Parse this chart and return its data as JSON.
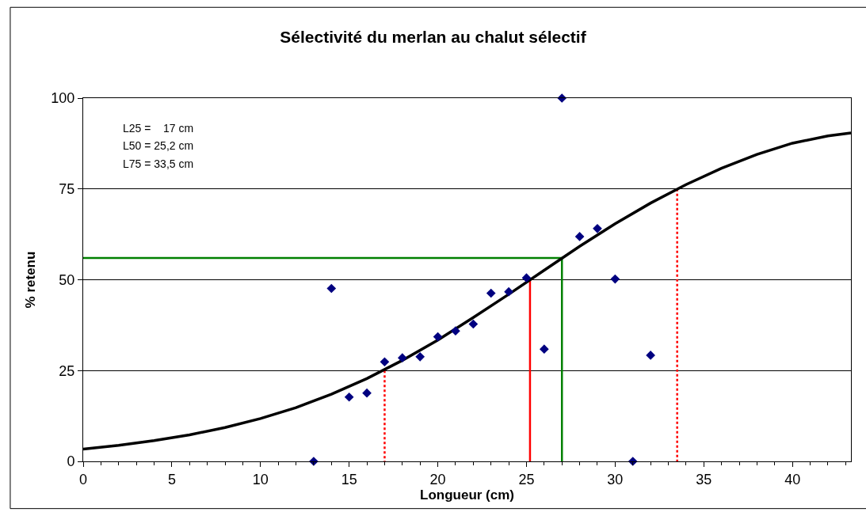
{
  "chart_data": {
    "type": "scatter",
    "title": "Sélectivité du merlan au chalut sélectif",
    "xlabel": "Longueur (cm)",
    "ylabel": "% retenu",
    "xlim": [
      0,
      43.3
    ],
    "xticks": [
      0,
      5,
      10,
      15,
      20,
      25,
      30,
      35,
      40
    ],
    "ylim": [
      0,
      100
    ],
    "yticks": [
      0,
      25,
      50,
      75,
      100
    ],
    "grid": "y",
    "annotations": [
      "L25 =    17 cm",
      "L50 = 25,2 cm",
      "L75 = 33,5 cm"
    ],
    "series": [
      {
        "type": "line",
        "color": "#008000",
        "line_style": "solid",
        "marker": "none",
        "x": [
          0,
          27,
          27
        ],
        "values": [
          56,
          56,
          0
        ]
      },
      {
        "type": "line",
        "color": "#ff0000",
        "line_style": "solid",
        "marker": "none",
        "x": [
          25.2,
          25.2
        ],
        "values": [
          0,
          50
        ]
      },
      {
        "type": "line",
        "color": "#ff0000",
        "line_style": "dotted",
        "marker": "none",
        "x": [
          17,
          17
        ],
        "values": [
          25,
          0
        ]
      },
      {
        "type": "line",
        "color": "#ff0000",
        "line_style": "dotted",
        "marker": "none",
        "x": [
          33.5,
          33.5
        ],
        "values": [
          75,
          0
        ]
      },
      {
        "type": "line",
        "color": "#000000",
        "line_style": "solid",
        "marker": "none",
        "x": [
          0,
          2,
          4,
          6,
          8,
          10,
          12,
          14,
          16,
          18,
          20,
          22,
          24,
          26,
          28,
          30,
          32,
          34,
          36,
          38,
          40,
          42,
          43.3
        ],
        "values": [
          3.4,
          4.4,
          5.7,
          7.3,
          9.3,
          11.8,
          14.8,
          18.5,
          22.8,
          27.8,
          33.4,
          39.6,
          46.0,
          52.6,
          59.2,
          65.4,
          71.1,
          76.2,
          80.7,
          84.5,
          87.6,
          89.6,
          90.4
        ]
      },
      {
        "color": "#000080",
        "marker": "diamond",
        "x": [
          13,
          14,
          15,
          16,
          17,
          18,
          19,
          20,
          21,
          22,
          23,
          24,
          25,
          26,
          27,
          28,
          29,
          30,
          31,
          32
        ],
        "values": [
          0,
          47.6,
          17.7,
          18.8,
          27.4,
          28.5,
          28.8,
          34.3,
          35.9,
          37.8,
          46.3,
          46.7,
          50.5,
          30.9,
          100,
          61.9,
          64.1,
          50.2,
          0,
          29.2
        ]
      }
    ]
  }
}
